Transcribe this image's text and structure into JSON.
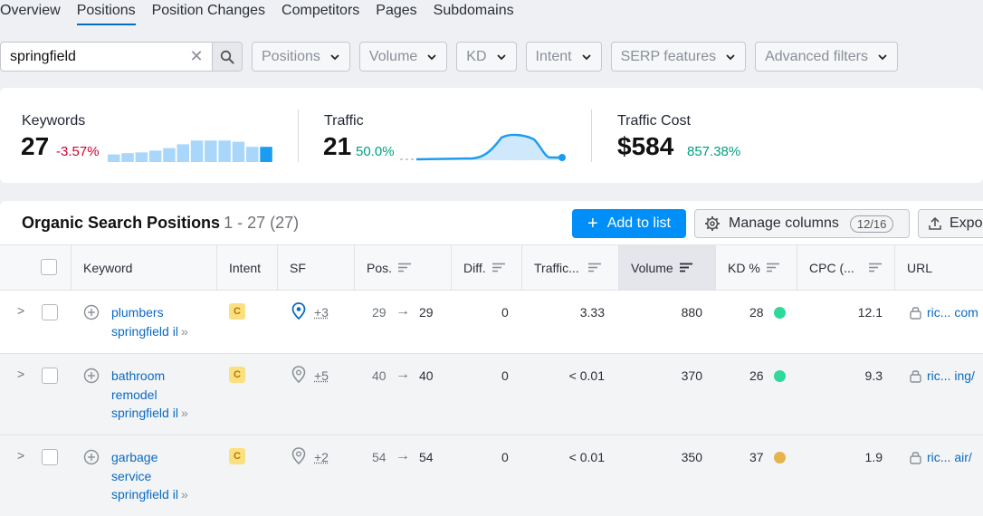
{
  "nav": {
    "tabs": [
      {
        "label": "Overview",
        "active": false
      },
      {
        "label": "Positions",
        "active": true
      },
      {
        "label": "Position Changes",
        "active": false
      },
      {
        "label": "Competitors",
        "active": false
      },
      {
        "label": "Pages",
        "active": false
      },
      {
        "label": "Subdomains",
        "active": false
      }
    ]
  },
  "filters": {
    "search_value": "springfield",
    "dropdowns": [
      "Positions",
      "Volume",
      "KD",
      "Intent",
      "SERP features",
      "Advanced filters"
    ]
  },
  "summary": {
    "keywords": {
      "label": "Keywords",
      "value": "27",
      "delta": "-3.57%",
      "bars": [
        0.3,
        0.35,
        0.38,
        0.45,
        0.55,
        0.7,
        0.85,
        0.85,
        0.85,
        0.8,
        0.6,
        0.6
      ],
      "highlight_last": true
    },
    "traffic": {
      "label": "Traffic",
      "value": "21",
      "delta": "50.0%"
    },
    "traffic_cost": {
      "label": "Traffic Cost",
      "value": "$584",
      "delta": "857.38%"
    }
  },
  "positions": {
    "title": "Organic Search Positions",
    "range": "1 - 27 (27)",
    "add_to_list": "Add to list",
    "manage_columns": "Manage columns",
    "columns_count": "12/16",
    "export": "Expo",
    "columns": {
      "keyword": "Keyword",
      "intent": "Intent",
      "sf": "SF",
      "pos": "Pos.",
      "diff": "Diff.",
      "traffic": "Traffic...",
      "volume": "Volume",
      "kd": "KD %",
      "cpc": "CPC (...",
      "url": "URL"
    },
    "rows": [
      {
        "kw1": "plumbers",
        "kw2": "springfield il",
        "kw3": "",
        "intent": "C",
        "sf_more": "+3",
        "pos_prev": "29",
        "pos": "29",
        "diff": "0",
        "traffic": "3.33",
        "volume": "880",
        "kd": "28",
        "kd_color": "#2fd89b",
        "cpc": "12.1",
        "url": "ric...  com"
      },
      {
        "kw1": "bathroom",
        "kw2": "remodel",
        "kw3": "springfield il",
        "intent": "C",
        "sf_more": "+5",
        "pos_prev": "40",
        "pos": "40",
        "diff": "0",
        "traffic": "< 0.01",
        "volume": "370",
        "kd": "26",
        "kd_color": "#2fd89b",
        "cpc": "9.3",
        "url": "ric...  ing/"
      },
      {
        "kw1": "garbage",
        "kw2": "service",
        "kw3": "springfield il",
        "intent": "C",
        "sf_more": "+2",
        "pos_prev": "54",
        "pos": "54",
        "diff": "0",
        "traffic": "< 0.01",
        "volume": "350",
        "kd": "37",
        "kd_color": "#e7b24a",
        "cpc": "1.9",
        "url": "ric...  air/"
      }
    ]
  }
}
